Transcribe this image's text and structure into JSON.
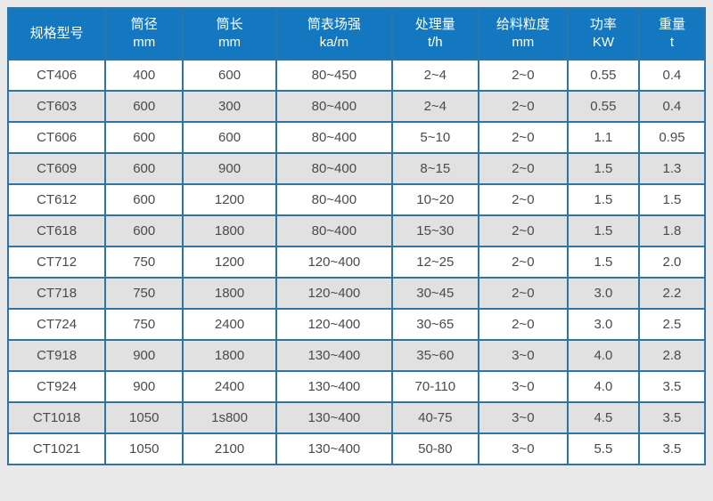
{
  "chart_data": {
    "type": "table",
    "columns": [
      {
        "label": "规格型号",
        "unit": ""
      },
      {
        "label": "筒径",
        "unit": "mm"
      },
      {
        "label": "筒长",
        "unit": "mm"
      },
      {
        "label": "筒表场强",
        "unit": "ka/m"
      },
      {
        "label": "处理量",
        "unit": "t/h"
      },
      {
        "label": "给料粒度",
        "unit": "mm"
      },
      {
        "label": "功率",
        "unit": "KW"
      },
      {
        "label": "重量",
        "unit": "t"
      }
    ],
    "rows": [
      [
        "CT406",
        "400",
        "600",
        "80~450",
        "2~4",
        "2~0",
        "0.55",
        "0.4"
      ],
      [
        "CT603",
        "600",
        "300",
        "80~400",
        "2~4",
        "2~0",
        "0.55",
        "0.4"
      ],
      [
        "CT606",
        "600",
        "600",
        "80~400",
        "5~10",
        "2~0",
        "1.1",
        "0.95"
      ],
      [
        "CT609",
        "600",
        "900",
        "80~400",
        "8~15",
        "2~0",
        "1.5",
        "1.3"
      ],
      [
        "CT612",
        "600",
        "1200",
        "80~400",
        "10~20",
        "2~0",
        "1.5",
        "1.5"
      ],
      [
        "CT618",
        "600",
        "1800",
        "80~400",
        "15~30",
        "2~0",
        "1.5",
        "1.8"
      ],
      [
        "CT712",
        "750",
        "1200",
        "120~400",
        "12~25",
        "2~0",
        "1.5",
        "2.0"
      ],
      [
        "CT718",
        "750",
        "1800",
        "120~400",
        "30~45",
        "2~0",
        "3.0",
        "2.2"
      ],
      [
        "CT724",
        "750",
        "2400",
        "120~400",
        "30~65",
        "2~0",
        "3.0",
        "2.5"
      ],
      [
        "CT918",
        "900",
        "1800",
        "130~400",
        "35~60",
        "3~0",
        "4.0",
        "2.8"
      ],
      [
        "CT924",
        "900",
        "2400",
        "130~400",
        "70-110",
        "3~0",
        "4.0",
        "3.5"
      ],
      [
        "CT1018",
        "1050",
        "1s800",
        "130~400",
        "40-75",
        "3~0",
        "4.5",
        "3.5"
      ],
      [
        "CT1021",
        "1050",
        "2100",
        "130~400",
        "50-80",
        "3~0",
        "5.5",
        "3.5"
      ]
    ]
  },
  "colors": {
    "header_bg": "#1478c0",
    "header_text": "#ffffff",
    "border": "#2e74a4",
    "row_alt_bg": "#e1e1e1",
    "page_bg": "#e9e9e9",
    "body_text": "#4a4a4a"
  }
}
